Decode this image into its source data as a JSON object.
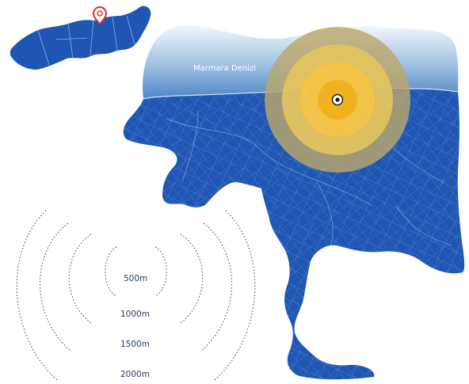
{
  "map": {
    "sea_label": "Marmara Denizi",
    "land_color": "#1f56b3",
    "sea_color_top": "#f4f8fc",
    "sea_color_bottom": "#4e86c6",
    "buffer_colors": [
      "#f2b21c",
      "#f3c446",
      "#e4c35d",
      "#bba76b"
    ],
    "center_marker": "target-dot-icon"
  },
  "inset": {
    "marker": "location-pin-icon",
    "marker_color": "#d9302a"
  },
  "legend": {
    "rings": [
      {
        "label": "500m"
      },
      {
        "label": "1000m"
      },
      {
        "label": "1500m"
      },
      {
        "label": "2000m"
      }
    ]
  }
}
